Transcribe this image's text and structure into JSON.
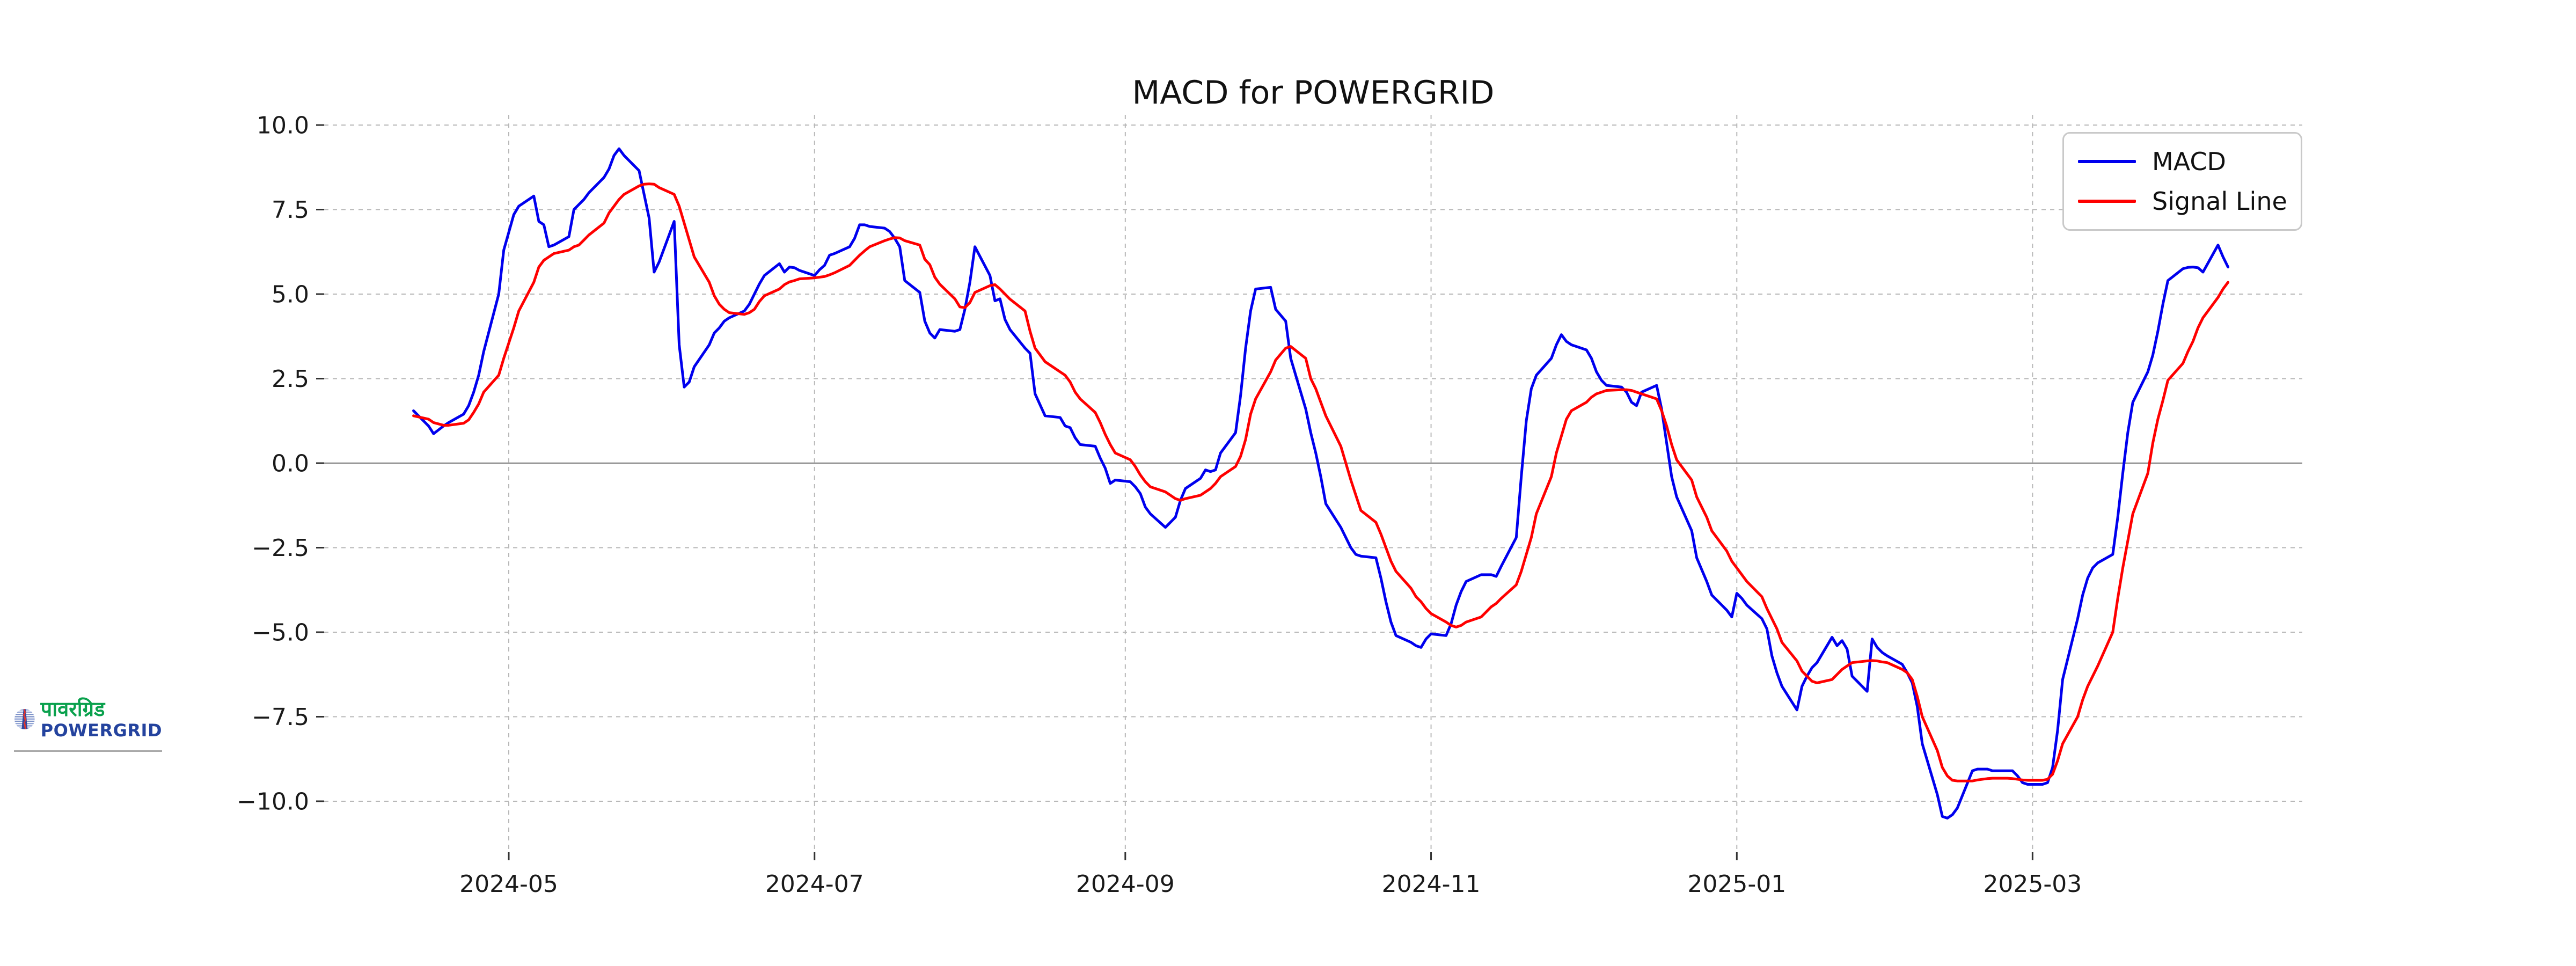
{
  "title": "MACD for POWERGRID",
  "legend": {
    "items": [
      {
        "label": "MACD"
      },
      {
        "label": "Signal Line"
      }
    ]
  },
  "logo": {
    "hindi_text": "पावरग्रिड",
    "latin_text": "POWERGRID"
  },
  "colors": {
    "macd": "#0000ee",
    "signal": "#ff0000",
    "grid": "#b8b8b8",
    "zero_line": "#8c8c8c",
    "tick": "#333333",
    "text": "#1a1a1a"
  },
  "axes": {
    "y_ticks": [
      {
        "v": 10.0,
        "label": "10.0"
      },
      {
        "v": 7.5,
        "label": "7.5"
      },
      {
        "v": 5.0,
        "label": "5.0"
      },
      {
        "v": 2.5,
        "label": "2.5"
      },
      {
        "v": 0.0,
        "label": "0.0"
      },
      {
        "v": -2.5,
        "label": "−2.5"
      },
      {
        "v": -5.0,
        "label": "−5.0"
      },
      {
        "v": -7.5,
        "label": "−7.5"
      },
      {
        "v": -10.0,
        "label": "−10.0"
      }
    ],
    "x_ticks": [
      {
        "label": "2024-05",
        "date": "2024-05-01"
      },
      {
        "label": "2024-07",
        "date": "2024-07-01"
      },
      {
        "label": "2024-09",
        "date": "2024-09-01"
      },
      {
        "label": "2024-11",
        "date": "2024-11-01"
      },
      {
        "label": "2025-01",
        "date": "2025-01-01"
      },
      {
        "label": "2025-03",
        "date": "2025-03-01"
      }
    ]
  },
  "chart_data": {
    "type": "line",
    "title": "MACD for POWERGRID",
    "xlabel": "",
    "ylabel": "",
    "ylim": [
      -11.5,
      10.3
    ],
    "xlim": [
      "2024-03-25",
      "2025-04-27"
    ],
    "grid": true,
    "zero_line": true,
    "legend_position": "upper right",
    "x": [
      "2024-04-12",
      "2024-04-15",
      "2024-04-16",
      "2024-04-18",
      "2024-04-19",
      "2024-04-22",
      "2024-04-23",
      "2024-04-24",
      "2024-04-25",
      "2024-04-26",
      "2024-04-29",
      "2024-04-30",
      "2024-05-02",
      "2024-05-03",
      "2024-05-06",
      "2024-05-07",
      "2024-05-08",
      "2024-05-09",
      "2024-05-10",
      "2024-05-13",
      "2024-05-14",
      "2024-05-15",
      "2024-05-16",
      "2024-05-17",
      "2024-05-20",
      "2024-05-21",
      "2024-05-22",
      "2024-05-23",
      "2024-05-24",
      "2024-05-27",
      "2024-05-28",
      "2024-05-29",
      "2024-05-30",
      "2024-05-31",
      "2024-06-03",
      "2024-06-04",
      "2024-06-05",
      "2024-06-06",
      "2024-06-07",
      "2024-06-10",
      "2024-06-11",
      "2024-06-12",
      "2024-06-13",
      "2024-06-14",
      "2024-06-17",
      "2024-06-18",
      "2024-06-19",
      "2024-06-20",
      "2024-06-21",
      "2024-06-24",
      "2024-06-25",
      "2024-06-26",
      "2024-06-27",
      "2024-06-28",
      "2024-07-01",
      "2024-07-02",
      "2024-07-03",
      "2024-07-04",
      "2024-07-05",
      "2024-07-08",
      "2024-07-09",
      "2024-07-10",
      "2024-07-11",
      "2024-07-12",
      "2024-07-15",
      "2024-07-16",
      "2024-07-17",
      "2024-07-18",
      "2024-07-19",
      "2024-07-22",
      "2024-07-23",
      "2024-07-24",
      "2024-07-25",
      "2024-07-26",
      "2024-07-29",
      "2024-07-30",
      "2024-07-31",
      "2024-08-01",
      "2024-08-02",
      "2024-08-05",
      "2024-08-06",
      "2024-08-07",
      "2024-08-08",
      "2024-08-09",
      "2024-08-12",
      "2024-08-13",
      "2024-08-14",
      "2024-08-16",
      "2024-08-19",
      "2024-08-20",
      "2024-08-21",
      "2024-08-22",
      "2024-08-23",
      "2024-08-26",
      "2024-08-27",
      "2024-08-28",
      "2024-08-29",
      "2024-08-30",
      "2024-09-02",
      "2024-09-03",
      "2024-09-04",
      "2024-09-05",
      "2024-09-06",
      "2024-09-09",
      "2024-09-10",
      "2024-09-11",
      "2024-09-12",
      "2024-09-13",
      "2024-09-16",
      "2024-09-17",
      "2024-09-18",
      "2024-09-19",
      "2024-09-20",
      "2024-09-23",
      "2024-09-24",
      "2024-09-25",
      "2024-09-26",
      "2024-09-27",
      "2024-09-30",
      "2024-10-01",
      "2024-10-03",
      "2024-10-04",
      "2024-10-07",
      "2024-10-08",
      "2024-10-09",
      "2024-10-10",
      "2024-10-11",
      "2024-10-14",
      "2024-10-15",
      "2024-10-16",
      "2024-10-17",
      "2024-10-18",
      "2024-10-21",
      "2024-10-22",
      "2024-10-23",
      "2024-10-24",
      "2024-10-25",
      "2024-10-28",
      "2024-10-29",
      "2024-10-30",
      "2024-10-31",
      "2024-11-01",
      "2024-11-04",
      "2024-11-05",
      "2024-11-06",
      "2024-11-07",
      "2024-11-08",
      "2024-11-11",
      "2024-11-12",
      "2024-11-13",
      "2024-11-14",
      "2024-11-15",
      "2024-11-18",
      "2024-11-19",
      "2024-11-20",
      "2024-11-21",
      "2024-11-22",
      "2024-11-25",
      "2024-11-26",
      "2024-11-27",
      "2024-11-28",
      "2024-11-29",
      "2024-12-02",
      "2024-12-03",
      "2024-12-04",
      "2024-12-05",
      "2024-12-06",
      "2024-12-09",
      "2024-12-10",
      "2024-12-11",
      "2024-12-12",
      "2024-12-13",
      "2024-12-16",
      "2024-12-17",
      "2024-12-18",
      "2024-12-19",
      "2024-12-20",
      "2024-12-23",
      "2024-12-24",
      "2024-12-26",
      "2024-12-27",
      "2024-12-30",
      "2024-12-31",
      "2025-01-01",
      "2025-01-02",
      "2025-01-03",
      "2025-01-06",
      "2025-01-07",
      "2025-01-08",
      "2025-01-09",
      "2025-01-10",
      "2025-01-13",
      "2025-01-14",
      "2025-01-15",
      "2025-01-16",
      "2025-01-17",
      "2025-01-20",
      "2025-01-21",
      "2025-01-22",
      "2025-01-23",
      "2025-01-24",
      "2025-01-27",
      "2025-01-28",
      "2025-01-29",
      "2025-01-30",
      "2025-01-31",
      "2025-02-03",
      "2025-02-04",
      "2025-02-05",
      "2025-02-06",
      "2025-02-07",
      "2025-02-10",
      "2025-02-11",
      "2025-02-12",
      "2025-02-13",
      "2025-02-14",
      "2025-02-17",
      "2025-02-18",
      "2025-02-19",
      "2025-02-20",
      "2025-02-21",
      "2025-02-24",
      "2025-02-25",
      "2025-02-26",
      "2025-02-27",
      "2025-02-28",
      "2025-03-03",
      "2025-03-04",
      "2025-03-05",
      "2025-03-06",
      "2025-03-07",
      "2025-03-10",
      "2025-03-11",
      "2025-03-12",
      "2025-03-13",
      "2025-03-14",
      "2025-03-17",
      "2025-03-18",
      "2025-03-19",
      "2025-03-20",
      "2025-03-21",
      "2025-03-24",
      "2025-03-25",
      "2025-03-26",
      "2025-03-27",
      "2025-03-28",
      "2025-03-31",
      "2025-04-01",
      "2025-04-02",
      "2025-04-03",
      "2025-04-04",
      "2025-04-07",
      "2025-04-08",
      "2025-04-09"
    ],
    "series": [
      {
        "name": "MACD",
        "color": "#0000ee",
        "values": [
          1.55,
          1.1,
          0.87,
          1.1,
          1.2,
          1.45,
          1.7,
          2.1,
          2.6,
          3.3,
          5.0,
          6.3,
          7.35,
          7.6,
          7.9,
          7.15,
          7.05,
          6.4,
          6.45,
          6.7,
          7.5,
          7.65,
          7.8,
          8.0,
          8.45,
          8.7,
          9.1,
          9.3,
          9.1,
          8.65,
          7.95,
          7.25,
          5.65,
          5.95,
          7.15,
          3.5,
          2.25,
          2.4,
          2.85,
          3.5,
          3.85,
          4.0,
          4.2,
          4.3,
          4.5,
          4.7,
          5.0,
          5.3,
          5.55,
          5.9,
          5.65,
          5.8,
          5.78,
          5.7,
          5.55,
          5.72,
          5.85,
          6.15,
          6.2,
          6.4,
          6.65,
          7.05,
          7.05,
          7.0,
          6.95,
          6.85,
          6.65,
          6.4,
          5.4,
          5.05,
          4.2,
          3.85,
          3.7,
          3.95,
          3.9,
          3.95,
          4.55,
          5.35,
          6.4,
          5.55,
          4.8,
          4.86,
          4.25,
          3.95,
          3.4,
          3.25,
          2.05,
          1.4,
          1.35,
          1.1,
          1.05,
          0.75,
          0.55,
          0.5,
          0.15,
          -0.15,
          -0.6,
          -0.5,
          -0.55,
          -0.7,
          -0.9,
          -1.3,
          -1.5,
          -1.9,
          -1.75,
          -1.6,
          -1.1,
          -0.75,
          -0.45,
          -0.2,
          -0.25,
          -0.2,
          0.3,
          0.9,
          2.0,
          3.4,
          4.5,
          5.15,
          5.2,
          4.55,
          4.2,
          3.1,
          1.6,
          0.9,
          0.3,
          -0.4,
          -1.2,
          -1.9,
          -2.2,
          -2.5,
          -2.7,
          -2.75,
          -2.8,
          -3.4,
          -4.1,
          -4.7,
          -5.1,
          -5.3,
          -5.4,
          -5.45,
          -5.2,
          -5.05,
          -5.1,
          -4.75,
          -4.2,
          -3.8,
          -3.5,
          -3.3,
          -3.3,
          -3.3,
          -3.35,
          -3.05,
          -2.2,
          -0.4,
          1.25,
          2.2,
          2.6,
          3.1,
          3.5,
          3.8,
          3.6,
          3.5,
          3.35,
          3.1,
          2.7,
          2.45,
          2.3,
          2.25,
          2.1,
          1.8,
          1.7,
          2.1,
          2.3,
          1.6,
          0.6,
          -0.4,
          -1.0,
          -2.0,
          -2.8,
          -3.5,
          -3.9,
          -4.35,
          -4.55,
          -3.85,
          -4.0,
          -4.2,
          -4.6,
          -4.9,
          -5.7,
          -6.2,
          -6.6,
          -7.3,
          -6.6,
          -6.3,
          -6.05,
          -5.9,
          -5.15,
          -5.4,
          -5.25,
          -5.5,
          -6.3,
          -6.75,
          -5.2,
          -5.45,
          -5.6,
          -5.7,
          -5.95,
          -6.2,
          -6.5,
          -7.2,
          -8.3,
          -9.8,
          -10.45,
          -10.5,
          -10.4,
          -10.2,
          -9.1,
          -9.05,
          -9.05,
          -9.05,
          -9.1,
          -9.1,
          -9.1,
          -9.25,
          -9.45,
          -9.5,
          -9.5,
          -9.45,
          -9.0,
          -7.9,
          -6.4,
          -4.6,
          -3.9,
          -3.4,
          -3.1,
          -2.95,
          -2.7,
          -1.6,
          -0.3,
          0.9,
          1.8,
          2.7,
          3.2,
          3.9,
          4.7,
          5.4,
          5.75,
          5.79,
          5.8,
          5.78,
          5.65,
          6.45,
          6.1,
          5.8
        ]
      },
      {
        "name": "Signal Line",
        "color": "#ff0000",
        "values": [
          1.4,
          1.3,
          1.2,
          1.12,
          1.12,
          1.18,
          1.28,
          1.5,
          1.75,
          2.1,
          2.6,
          3.1,
          4.0,
          4.5,
          5.35,
          5.8,
          6.0,
          6.1,
          6.2,
          6.3,
          6.4,
          6.45,
          6.6,
          6.75,
          7.1,
          7.4,
          7.6,
          7.8,
          7.95,
          8.2,
          8.25,
          8.26,
          8.25,
          8.15,
          7.95,
          7.6,
          7.1,
          6.6,
          6.1,
          5.35,
          4.95,
          4.7,
          4.55,
          4.45,
          4.4,
          4.45,
          4.55,
          4.78,
          4.95,
          5.15,
          5.28,
          5.36,
          5.4,
          5.45,
          5.48,
          5.5,
          5.52,
          5.57,
          5.63,
          5.85,
          6.0,
          6.15,
          6.28,
          6.4,
          6.58,
          6.63,
          6.67,
          6.66,
          6.58,
          6.45,
          6.03,
          5.87,
          5.5,
          5.29,
          4.86,
          4.62,
          4.6,
          4.75,
          5.05,
          5.25,
          5.28,
          5.15,
          5.0,
          4.85,
          4.5,
          3.9,
          3.4,
          3.0,
          2.7,
          2.6,
          2.4,
          2.1,
          1.9,
          1.5,
          1.2,
          0.85,
          0.55,
          0.3,
          0.1,
          -0.1,
          -0.35,
          -0.55,
          -0.7,
          -0.85,
          -0.95,
          -1.05,
          -1.1,
          -1.05,
          -0.95,
          -0.85,
          -0.75,
          -0.6,
          -0.4,
          -0.1,
          0.2,
          0.7,
          1.45,
          1.9,
          2.7,
          3.05,
          3.4,
          3.45,
          3.1,
          2.5,
          2.2,
          1.8,
          1.4,
          0.5,
          0.0,
          -0.5,
          -0.95,
          -1.4,
          -1.75,
          -2.1,
          -2.5,
          -2.9,
          -3.2,
          -3.7,
          -3.95,
          -4.1,
          -4.3,
          -4.45,
          -4.7,
          -4.8,
          -4.85,
          -4.8,
          -4.7,
          -4.55,
          -4.4,
          -4.25,
          -4.15,
          -4.0,
          -3.6,
          -3.2,
          -2.7,
          -2.2,
          -1.5,
          -0.4,
          0.3,
          0.8,
          1.3,
          1.55,
          1.8,
          1.95,
          2.05,
          2.1,
          2.15,
          2.17,
          2.17,
          2.15,
          2.1,
          2.05,
          1.9,
          1.55,
          1.1,
          0.55,
          0.1,
          -0.5,
          -1.0,
          -1.6,
          -2.0,
          -2.6,
          -2.9,
          -3.1,
          -3.3,
          -3.5,
          -3.95,
          -4.3,
          -4.6,
          -4.9,
          -5.3,
          -5.85,
          -6.15,
          -6.3,
          -6.45,
          -6.5,
          -6.4,
          -6.25,
          -6.1,
          -6.0,
          -5.9,
          -5.85,
          -5.84,
          -5.85,
          -5.88,
          -5.9,
          -6.1,
          -6.2,
          -6.4,
          -6.9,
          -7.5,
          -8.5,
          -9.0,
          -9.25,
          -9.38,
          -9.4,
          -9.4,
          -9.37,
          -9.35,
          -9.33,
          -9.32,
          -9.32,
          -9.33,
          -9.35,
          -9.37,
          -9.38,
          -9.38,
          -9.35,
          -9.2,
          -8.8,
          -8.3,
          -7.5,
          -7.0,
          -6.6,
          -6.3,
          -6.0,
          -5.0,
          -4.0,
          -3.1,
          -2.3,
          -1.5,
          -0.3,
          0.6,
          1.3,
          1.85,
          2.45,
          2.95,
          3.3,
          3.6,
          4.0,
          4.3,
          4.9,
          5.15,
          5.35
        ]
      }
    ]
  }
}
